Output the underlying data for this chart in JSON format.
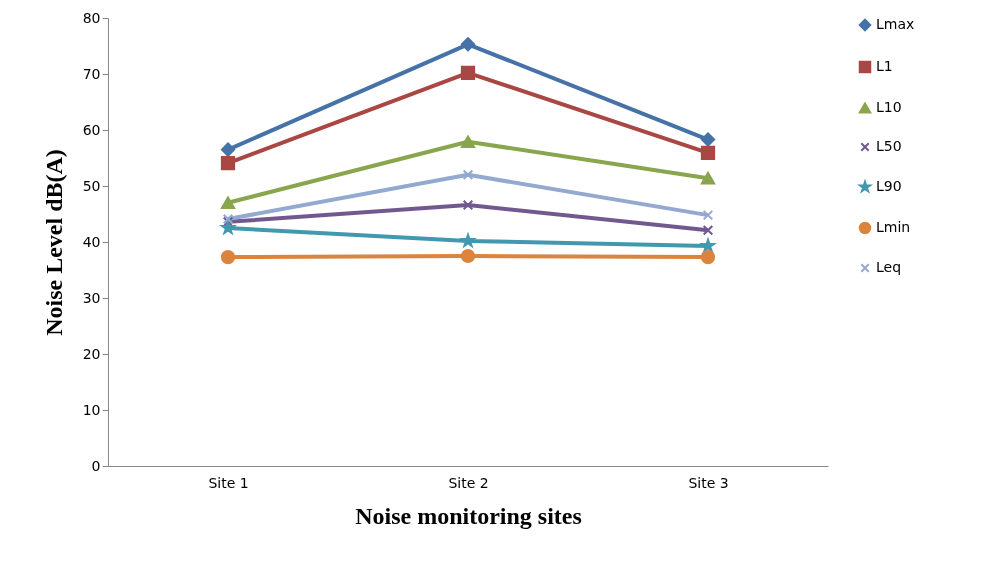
{
  "chart_data": {
    "type": "line",
    "xlabel": "Noise monitoring sites",
    "ylabel": "Noise Level dB(A)",
    "categories": [
      "Site 1",
      "Site 2",
      "Site 3"
    ],
    "ylim": [
      0,
      80
    ],
    "yticks": [
      0,
      10,
      20,
      30,
      40,
      50,
      60,
      70,
      80
    ],
    "grid": false,
    "legend": "right",
    "line_style": "solid",
    "series": [
      {
        "name": "Lmax",
        "color": "#4572a7",
        "marker": "diamond",
        "values": [
          56.5,
          75.3,
          58.3
        ]
      },
      {
        "name": "L1",
        "color": "#aa4643",
        "marker": "square",
        "values": [
          54.1,
          70.2,
          55.9
        ]
      },
      {
        "name": "L10",
        "color": "#89a54e",
        "marker": "triangle",
        "values": [
          47,
          57.9,
          51.4
        ]
      },
      {
        "name": "L50",
        "color": "#71588f",
        "marker": "cross",
        "values": [
          43.6,
          46.6,
          42.1
        ]
      },
      {
        "name": "L90",
        "color": "#4198af",
        "marker": "star",
        "values": [
          42.5,
          40.2,
          39.3
        ]
      },
      {
        "name": "Lmin",
        "color": "#db843d",
        "marker": "circle",
        "values": [
          37.3,
          37.5,
          37.3
        ]
      },
      {
        "name": "Leq",
        "color": "#93a9cf",
        "marker": "cross",
        "values": [
          44.1,
          52,
          44.8
        ]
      }
    ]
  }
}
